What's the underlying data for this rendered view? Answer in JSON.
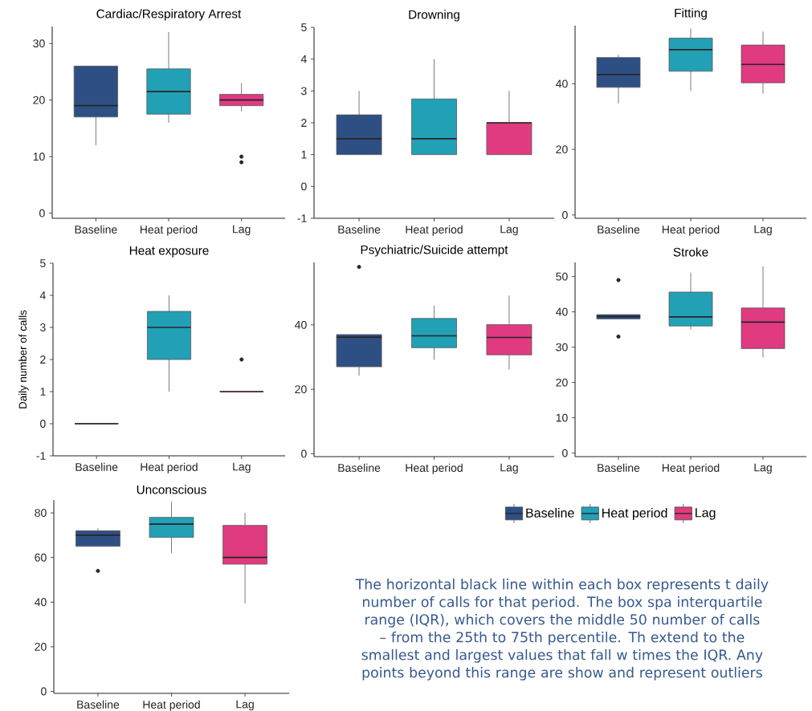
{
  "chart_data": [
    {
      "type": "box",
      "title": "Cardiac/Respiratory Arrest",
      "categories": [
        "Baseline",
        "Heat period",
        "Lag"
      ],
      "ylim": [
        -0.9,
        33
      ],
      "yticks": [
        0,
        10,
        20,
        30
      ],
      "series": [
        {
          "color": "#2e4f84",
          "boxes": [
            {
              "low": 12,
              "q1": 17,
              "median": 19,
              "q3": 26,
              "high": 26
            },
            null,
            null
          ]
        },
        {
          "color": "#22a0b5",
          "boxes": [
            null,
            {
              "low": 16,
              "q1": 17.5,
              "median": 21.5,
              "q3": 25.5,
              "high": 32
            },
            null
          ]
        },
        {
          "color": "#e03a80",
          "boxes": [
            null,
            null,
            {
              "low": 18,
              "q1": 19,
              "median": 20,
              "q3": 21,
              "high": 23,
              "outliers": [
                9,
                10
              ]
            }
          ]
        }
      ]
    },
    {
      "type": "box",
      "title": "Drowning",
      "categories": [
        "Baseline",
        "Heat period",
        "Lag"
      ],
      "ylim": [
        -1,
        5
      ],
      "yticks": [
        -1,
        0,
        1,
        2,
        3,
        4,
        5
      ],
      "series": [
        {
          "color": "#2e4f84",
          "boxes": [
            {
              "low": 1,
              "q1": 1,
              "median": 1.5,
              "q3": 2.25,
              "high": 3
            },
            null,
            null
          ]
        },
        {
          "color": "#22a0b5",
          "boxes": [
            null,
            {
              "low": 1,
              "q1": 1,
              "median": 1.5,
              "q3": 2.75,
              "high": 4
            },
            null
          ]
        },
        {
          "color": "#e03a80",
          "boxes": [
            null,
            null,
            {
              "low": 1,
              "q1": 1,
              "median": 2,
              "q3": 2,
              "high": 3
            }
          ]
        }
      ]
    },
    {
      "type": "box",
      "title": "Fitting",
      "categories": [
        "Baseline",
        "Heat period",
        "Lag"
      ],
      "ylim": [
        -1,
        57.7
      ],
      "yticks": [
        0,
        20,
        40
      ],
      "series": [
        {
          "color": "#2e4f84",
          "boxes": [
            {
              "low": 34,
              "q1": 38.9,
              "median": 42.8,
              "q3": 48,
              "high": 48.8
            },
            null,
            null
          ]
        },
        {
          "color": "#22a0b5",
          "boxes": [
            null,
            {
              "low": 37.8,
              "q1": 43.8,
              "median": 50.4,
              "q3": 53.9,
              "high": 56.9
            },
            null
          ]
        },
        {
          "color": "#e03a80",
          "boxes": [
            null,
            null,
            {
              "low": 37,
              "q1": 40.3,
              "median": 45.9,
              "q3": 51.8,
              "high": 55.9
            }
          ]
        }
      ]
    },
    {
      "type": "box",
      "title": "Heat exposure",
      "ylabel": "Daily number of calls",
      "categories": [
        "Baseline",
        "Heat period",
        "Lag"
      ],
      "ylim": [
        -1,
        5
      ],
      "yticks": [
        -1,
        0,
        1,
        2,
        3,
        4,
        5
      ],
      "series": [
        {
          "color": "#2e4f84",
          "boxes": [
            {
              "low": 0,
              "q1": 0,
              "median": 0,
              "q3": 0,
              "high": 0
            },
            null,
            null
          ]
        },
        {
          "color": "#22a0b5",
          "boxes": [
            null,
            {
              "low": 1,
              "q1": 2,
              "median": 3,
              "q3": 3.5,
              "high": 4
            },
            null
          ]
        },
        {
          "color": "#e03a80",
          "boxes": [
            null,
            null,
            {
              "low": 1,
              "q1": 1,
              "median": 1,
              "q3": 1,
              "high": 1,
              "outliers": [
                2
              ]
            }
          ]
        }
      ]
    },
    {
      "type": "box",
      "title": "Psychiatric/Suicide attempt",
      "categories": [
        "Baseline",
        "Heat period",
        "Lag"
      ],
      "ylim": [
        -0.9,
        59.4
      ],
      "yticks": [
        0,
        20,
        40
      ],
      "series": [
        {
          "color": "#2e4f84",
          "boxes": [
            {
              "low": 24.2,
              "q1": 27,
              "median": 36.2,
              "q3": 37,
              "high": 37,
              "outliers": [
                58
              ]
            },
            null,
            null
          ]
        },
        {
          "color": "#22a0b5",
          "boxes": [
            null,
            {
              "low": 29.2,
              "q1": 32.9,
              "median": 36.6,
              "q3": 42,
              "high": 46
            },
            null
          ]
        },
        {
          "color": "#e03a80",
          "boxes": [
            null,
            null,
            {
              "low": 26.2,
              "q1": 30.7,
              "median": 36.1,
              "q3": 40.1,
              "high": 49.1
            }
          ]
        }
      ]
    },
    {
      "type": "box",
      "title": "Stroke",
      "categories": [
        "Baseline",
        "Heat period",
        "Lag"
      ],
      "ylim": [
        -1,
        54
      ],
      "yticks": [
        0,
        10,
        20,
        30,
        40,
        50
      ],
      "series": [
        {
          "color": "#2e4f84",
          "boxes": [
            {
              "low": 38,
              "q1": 38,
              "median": 38.7,
              "q3": 39.2,
              "high": 39.2,
              "outliers": [
                33,
                49
              ]
            },
            null,
            null
          ]
        },
        {
          "color": "#22a0b5",
          "boxes": [
            null,
            {
              "low": 35,
              "q1": 36,
              "median": 38.6,
              "q3": 45.6,
              "high": 51.1
            },
            null
          ]
        },
        {
          "color": "#e03a80",
          "boxes": [
            null,
            null,
            {
              "low": 27.1,
              "q1": 29.6,
              "median": 37.1,
              "q3": 41.1,
              "high": 52.9
            }
          ]
        }
      ]
    },
    {
      "type": "box",
      "title": "Unconscious",
      "categories": [
        "Baseline",
        "Heat period",
        "Lag"
      ],
      "ylim": [
        -0.9,
        85.8
      ],
      "yticks": [
        0,
        20,
        40,
        60,
        80
      ],
      "legend": "right",
      "annotations": [
        "The horizontal black line within each box represents t daily number of calls for that period. The box spa interquartile range (IQR), which covers the middle 50 number of calls – from the 25th to 75th percentile. Th extend to the smallest and largest values that fall w times the IQR. Any points beyond this range are show and represent outliers"
      ],
      "series": [
        {
          "name": "Baseline",
          "color": "#2e4f84",
          "boxes": [
            {
              "low": 65,
              "q1": 65,
              "median": 70,
              "q3": 72,
              "high": 73,
              "outliers": [
                54
              ]
            },
            null,
            null
          ]
        },
        {
          "name": "Heat period",
          "color": "#22a0b5",
          "boxes": [
            null,
            {
              "low": 62,
              "q1": 69,
              "median": 75,
              "q3": 78,
              "high": 85
            },
            null
          ]
        },
        {
          "name": "Lag",
          "color": "#e03a80",
          "boxes": [
            null,
            null,
            {
              "low": 39.4,
              "q1": 57,
              "median": 60,
              "q3": 74.4,
              "high": 80
            }
          ]
        }
      ]
    }
  ]
}
